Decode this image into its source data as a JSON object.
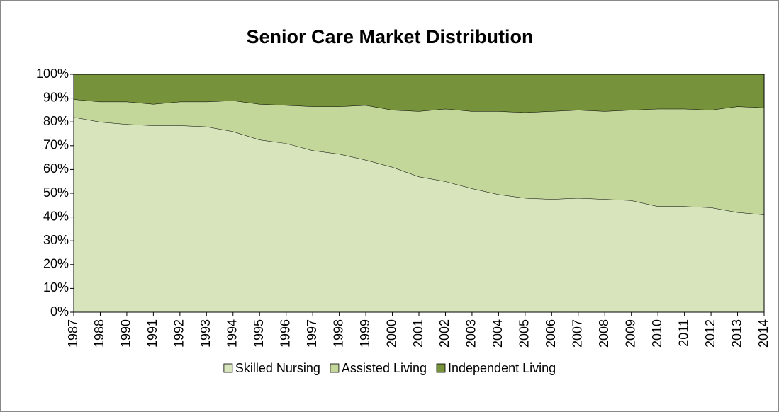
{
  "chart_data": {
    "type": "stacked-area",
    "title": "Senior Care Market Distribution",
    "categories": [
      "1987",
      "1988",
      "1990",
      "1991",
      "1992",
      "1993",
      "1994",
      "1995",
      "1996",
      "1997",
      "1998",
      "1999",
      "2000",
      "2001",
      "2002",
      "2003",
      "2004",
      "2005",
      "2006",
      "2007",
      "2008",
      "2009",
      "2010",
      "2011",
      "2012",
      "2013",
      "2014"
    ],
    "series": [
      {
        "name": "Skilled Nursing",
        "color": "#d8e4bc",
        "values": [
          82,
          80,
          79,
          78.5,
          78.5,
          78,
          76,
          72.5,
          71,
          68,
          66.5,
          64,
          61,
          57,
          55,
          52,
          49.5,
          48,
          47.5,
          48,
          47.5,
          47,
          44.5,
          44.5,
          44,
          42,
          41
        ]
      },
      {
        "name": "Assisted Living",
        "color": "#c4d79b",
        "values": [
          7.5,
          8.5,
          9.5,
          9,
          10,
          10.5,
          13,
          15,
          16,
          18.5,
          20,
          23,
          24,
          27.5,
          30.5,
          32.5,
          35,
          36,
          37,
          37,
          37,
          38,
          41,
          41,
          41,
          44.5,
          45
        ]
      },
      {
        "name": "Independent Living",
        "color": "#76933c",
        "values": [
          10.5,
          11.5,
          11.5,
          12.5,
          11.5,
          11.5,
          11,
          12.5,
          13,
          13.5,
          13.5,
          13,
          15,
          15.5,
          14.5,
          15.5,
          15.5,
          16,
          15.5,
          15,
          15.5,
          15,
          14.5,
          14.5,
          15,
          13.5,
          14
        ]
      }
    ],
    "ylim": [
      0,
      100
    ],
    "yticks": [
      {
        "value": 0,
        "label": "0%"
      },
      {
        "value": 10,
        "label": "10%"
      },
      {
        "value": 20,
        "label": "20%"
      },
      {
        "value": 30,
        "label": "30%"
      },
      {
        "value": 40,
        "label": "40%"
      },
      {
        "value": 50,
        "label": "50%"
      },
      {
        "value": 60,
        "label": "60%"
      },
      {
        "value": 70,
        "label": "70%"
      },
      {
        "value": 80,
        "label": "80%"
      },
      {
        "value": 90,
        "label": "90%"
      },
      {
        "value": 100,
        "label": "100%"
      }
    ],
    "legend": "bottom"
  }
}
